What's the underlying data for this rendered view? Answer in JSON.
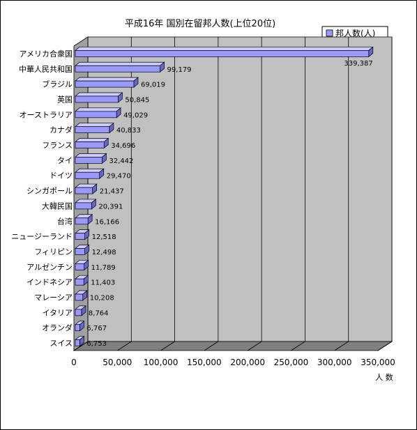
{
  "chart_data": {
    "type": "bar",
    "orientation": "horizontal",
    "title": "平成16年 国別在留邦人数(上位20位)",
    "xlabel": "人 数",
    "ylabel": "",
    "legend": {
      "position": "top-right",
      "entries": [
        "邦人数(人)"
      ]
    },
    "grid": true,
    "xlim": [
      0,
      350000
    ],
    "xticks": [
      "0",
      "50,000",
      "100,000",
      "150,000",
      "200,000",
      "250,000",
      "300,000",
      "350,000"
    ],
    "categories": [
      "アメリカ合衆国",
      "中華人民共和国",
      "ブラジル",
      "英国",
      "オーストラリア",
      "カナダ",
      "フランス",
      "タイ",
      "ドイツ",
      "シンガポール",
      "大韓民国",
      "台湾",
      "ニュージーランド",
      "フィリピン",
      "アルゼンチン",
      "インドネシア",
      "マレーシア",
      "イタリア",
      "オランダ",
      "スイス"
    ],
    "series": [
      {
        "name": "邦人数(人)",
        "values": [
          339387,
          99179,
          69019,
          50845,
          49029,
          40833,
          34696,
          32442,
          29470,
          21437,
          20391,
          16166,
          12518,
          12498,
          11789,
          11403,
          10208,
          8764,
          6767,
          6753
        ],
        "labels": [
          "339,387",
          "99,179",
          "69,019",
          "50,845",
          "49,029",
          "40,833",
          "34,696",
          "32,442",
          "29,470",
          "21,437",
          "20,391",
          "16,166",
          "12,518",
          "12,498",
          "11,789",
          "11,403",
          "10,208",
          "8,764",
          "6,767",
          "6,753"
        ]
      }
    ],
    "colors": {
      "bar_front": "#9999ff",
      "bar_top": "#ccccff",
      "bar_end": "#6666cc",
      "wall": "#c0c0c0",
      "floor": "#808080"
    }
  }
}
